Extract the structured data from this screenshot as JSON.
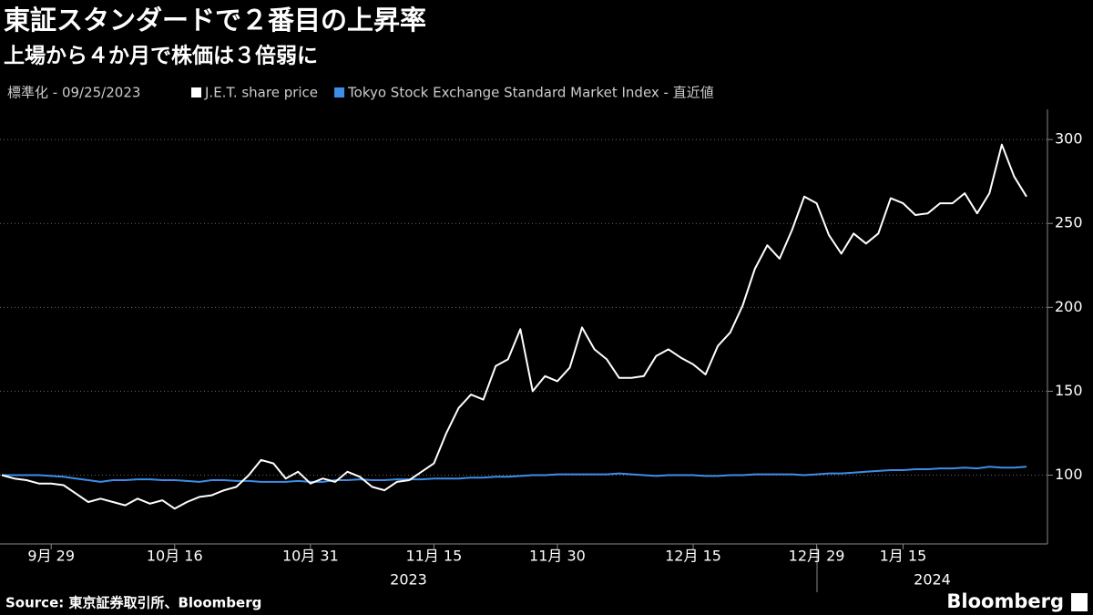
{
  "chart_data": {
    "type": "line",
    "title": "東証スタンダードで２番目の上昇率",
    "subtitle": "上場から４か月で株価は３倍弱に",
    "note": "標準化 - 09/25/2023",
    "categories": [
      null,
      null,
      null,
      null,
      "9月 29",
      null,
      null,
      null,
      null,
      null,
      null,
      null,
      null,
      null,
      "10月 16",
      null,
      null,
      null,
      null,
      null,
      null,
      null,
      null,
      null,
      null,
      "10月 31",
      null,
      null,
      null,
      null,
      null,
      null,
      null,
      null,
      null,
      "11月 15",
      null,
      null,
      null,
      null,
      null,
      null,
      null,
      null,
      null,
      "11月 30",
      null,
      null,
      null,
      null,
      null,
      null,
      null,
      null,
      null,
      null,
      "12月 15",
      null,
      null,
      null,
      null,
      null,
      null,
      null,
      null,
      null,
      "12月 29",
      null,
      null,
      null,
      null,
      null,
      null,
      "1月 15",
      null,
      null,
      null,
      null,
      null,
      null,
      null,
      null,
      null,
      null
    ],
    "year_labels": [
      "2023",
      "2024"
    ],
    "series": [
      {
        "name": "J.E.T. share price",
        "color": "#ffffff",
        "values": [
          100,
          98,
          97,
          95,
          95,
          94,
          89,
          84,
          86,
          84,
          82,
          86,
          83,
          85,
          80,
          84,
          87,
          88,
          91,
          93,
          100,
          109,
          107,
          98,
          102,
          95,
          98,
          96,
          102,
          99,
          93,
          91,
          96,
          97,
          102,
          107,
          125,
          140,
          148,
          145,
          165,
          169,
          187,
          150,
          159,
          156,
          164,
          188,
          175,
          169,
          158,
          158,
          159,
          171,
          175,
          170,
          166,
          160,
          177,
          185,
          201,
          223,
          237,
          229,
          246,
          266,
          262,
          243,
          232,
          244,
          238,
          244,
          265,
          262,
          255,
          256,
          262,
          262,
          268,
          256,
          268,
          297,
          278,
          266
        ]
      },
      {
        "name": "Tokyo Stock Exchange Standard Market Index - 直近値",
        "color": "#3d8ee8",
        "values": [
          100,
          100,
          100,
          100,
          99.5,
          99,
          98,
          97,
          96,
          97,
          97,
          97.5,
          97.5,
          97,
          97,
          96.5,
          96,
          97,
          97,
          96.5,
          96.5,
          96,
          96,
          96,
          96.5,
          96,
          96,
          97,
          97,
          97.5,
          97,
          97,
          97.5,
          97.5,
          97.5,
          98,
          98,
          98,
          98.5,
          98.5,
          99,
          99,
          99.5,
          100,
          100,
          100.5,
          100.5,
          100.5,
          100.5,
          100.5,
          101,
          100.5,
          100,
          99.5,
          100,
          100,
          100,
          99.5,
          99.5,
          100,
          100,
          100.5,
          100.5,
          100.5,
          100.5,
          100,
          100.5,
          101,
          101,
          101.5,
          102,
          102.5,
          103,
          103,
          103.5,
          103.5,
          104,
          104,
          104.5,
          104,
          105,
          104.5,
          104.5,
          105
        ]
      }
    ],
    "ylim": [
      59,
      318
    ],
    "yticks": [
      100,
      150,
      200,
      250,
      300
    ],
    "grid": true,
    "source": "Source: 東京証券取引所、Bloomberg",
    "logo": "Bloomberg"
  }
}
